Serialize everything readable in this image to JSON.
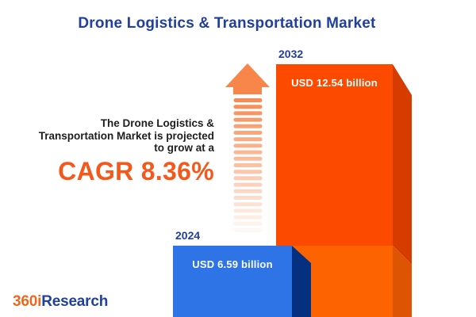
{
  "header": {
    "title": "Drone Logistics & Transportation Market"
  },
  "annotation": {
    "line1": "The Drone Logistics &",
    "line2": "Transportation Market is projected",
    "line3": "to grow at a",
    "cagr": "CAGR 8.36%"
  },
  "chart_data": {
    "type": "bar",
    "title": "Drone Logistics & Transportation Market",
    "categories": [
      "2024",
      "2032"
    ],
    "values": [
      6.59,
      12.54
    ],
    "unit": "USD billion",
    "value_labels": [
      "USD 6.59 billion",
      "USD 12.54 billion"
    ],
    "cagr_percent": 8.36,
    "annotation_text": "The Drone Logistics & Transportation Market is projected to grow at a CAGR 8.36%",
    "bar_colors": [
      "#2f74e6",
      "#fc4a01"
    ],
    "orientation": "vertical",
    "axes_visible": false,
    "legend": "none",
    "style": "3d-boxes with upward fading dashed growth arrow"
  },
  "footer": {
    "brand_orange": "360i",
    "brand_blue": "Research"
  },
  "colors": {
    "title_navy": "#21409e",
    "annotation_dark": "#1e1e1e",
    "cagr_orange": "#f4581b",
    "bar_blue_front": "#2f74e6",
    "bar_blue_side": "#05307f",
    "bar_orange_front_top": "#fc4a01",
    "bar_orange_front_bottom": "#fe6302",
    "bar_orange_side_top": "#d63c00",
    "bar_orange_side_bottom": "#dd5402",
    "arrow_head": "#f8864a",
    "arrow_dash": "#f6854b",
    "logo_orange": "#ef671f"
  }
}
